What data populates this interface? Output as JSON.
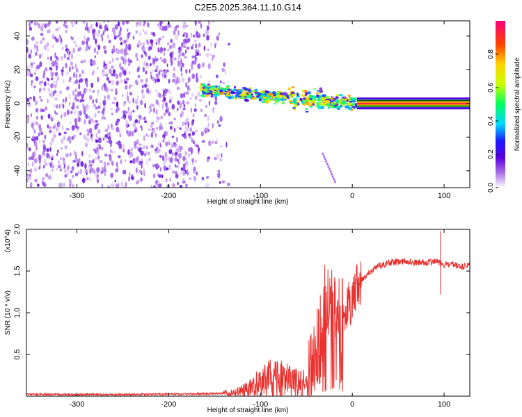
{
  "chart_data": [
    {
      "type": "heatmap",
      "title": "C2E5.2025.364.11.10.G14",
      "xlabel": "Height of straight line (km)",
      "ylabel": "Frequency (Hz)",
      "xlim": [
        -355,
        128
      ],
      "ylim": [
        -50,
        49
      ],
      "xticks": [
        -300,
        -200,
        -100,
        0,
        100
      ],
      "xtick_labels": [
        "-300",
        "-200",
        "-100",
        "0",
        "100"
      ],
      "yticks": [
        -40,
        -20,
        0,
        20,
        40
      ],
      "ytick_labels": [
        "-40",
        "-20",
        "0",
        "20",
        "40"
      ],
      "colorbar": {
        "label": "Normalized spectral amplitude",
        "ticks": [
          0.0,
          0.2,
          0.4,
          0.6,
          0.8
        ],
        "tick_labels": [
          "0.0",
          "0.2",
          "0.4",
          "0.6",
          "0.8"
        ],
        "range": [
          0,
          1
        ]
      },
      "regions": [
        {
          "name": "noise",
          "x_range": [
            -355,
            -150
          ],
          "freq_range": [
            -50,
            49
          ],
          "amplitude": 0.1
        },
        {
          "name": "transition",
          "x_range": [
            -165,
            5
          ],
          "center_freq_start": 8,
          "center_freq_end": 0,
          "amplitude": 0.45
        },
        {
          "name": "carrier",
          "x_range": [
            5,
            128
          ],
          "center_freq": 0,
          "amplitude": 0.95
        }
      ]
    },
    {
      "type": "line",
      "title": "",
      "xlabel": "Height of straight line (km)",
      "ylabel": "SNR (10 * v/v)",
      "y_multiplier_label": "(x10^4)",
      "xlim": [
        -355,
        128
      ],
      "ylim": [
        0,
        2.0
      ],
      "xticks": [
        -300,
        -200,
        -100,
        0,
        100
      ],
      "xtick_labels": [
        "-300",
        "-200",
        "-100",
        "0",
        "100"
      ],
      "yticks": [
        0.5,
        1.0,
        1.5,
        2.0
      ],
      "ytick_labels": [
        "0.5",
        "1.0",
        "1.5",
        "2.0"
      ],
      "color": "#e8312f",
      "series": [
        {
          "name": "SNR",
          "x": [
            -355,
            -300,
            -250,
            -200,
            -150,
            -130,
            -120,
            -110,
            -100,
            -90,
            -80,
            -70,
            -60,
            -50,
            -45,
            -40,
            -35,
            -30,
            -25,
            -20,
            -15,
            -10,
            -5,
            0,
            5,
            10,
            20,
            30,
            40,
            50,
            60,
            70,
            80,
            90,
            95,
            100,
            110,
            120,
            128
          ],
          "values": [
            0.02,
            0.02,
            0.02,
            0.025,
            0.03,
            0.04,
            0.06,
            0.1,
            0.16,
            0.2,
            0.2,
            0.18,
            0.15,
            0.16,
            0.3,
            0.55,
            0.75,
            1.1,
            1.2,
            1.1,
            0.9,
            1.0,
            1.05,
            1.15,
            1.3,
            1.4,
            1.5,
            1.57,
            1.6,
            1.61,
            1.62,
            1.6,
            1.6,
            1.62,
            1.6,
            1.58,
            1.57,
            1.55,
            1.57
          ]
        }
      ],
      "spikes": [
        {
          "x": 96,
          "value": 1.98
        },
        {
          "x": 96,
          "value": 1.22
        }
      ]
    }
  ]
}
